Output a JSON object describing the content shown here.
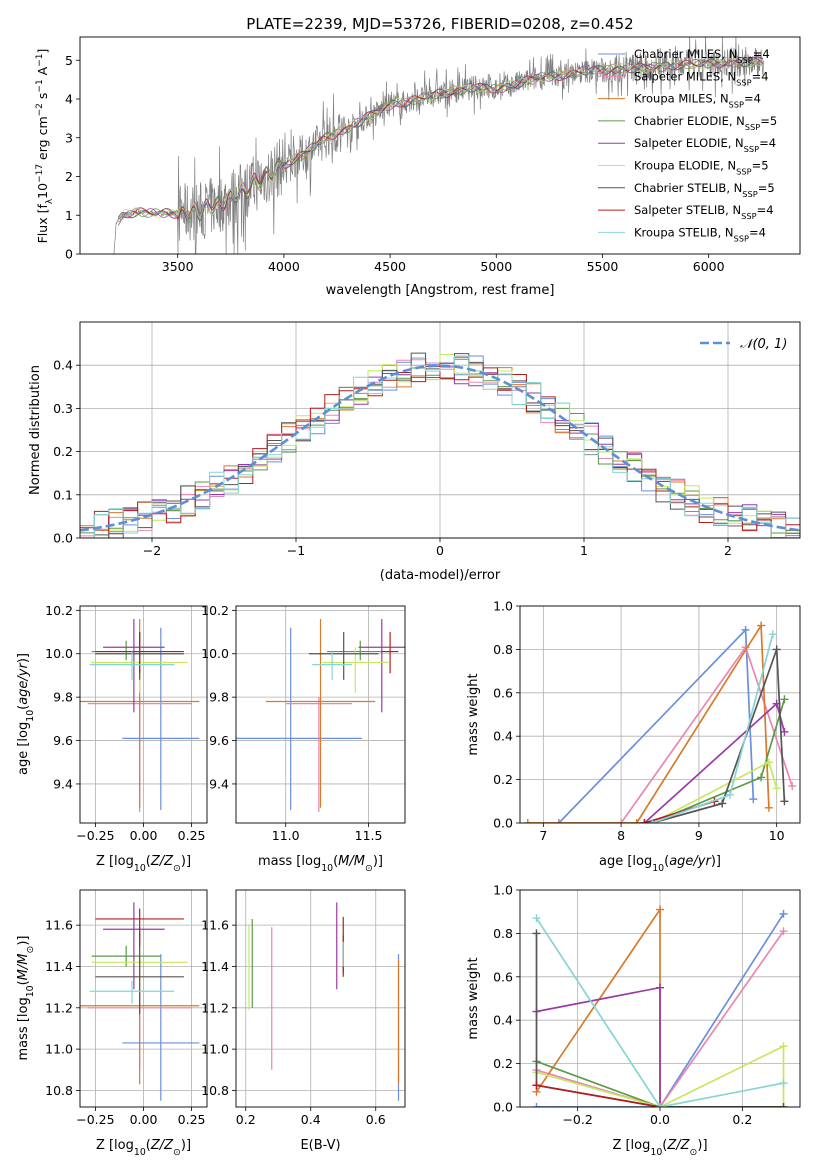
{
  "figure_title": "PLATE=2239, MJD=53726, FIBERID=0208, z=0.452",
  "colors": {
    "Chabrier MILES": "#6a8fdd",
    "Salpeter MILES": "#e887b3",
    "Kroupa MILES": "#d87a2a",
    "Chabrier ELODIE": "#5a9a48",
    "Salpeter ELODIE": "#9b3aa6",
    "Kroupa ELODIE": "#c6e85e",
    "Chabrier STELIB": "#555555",
    "Salpeter STELIB": "#b41e1e",
    "Kroupa STELIB": "#88d4d4"
  },
  "chart_data": [
    {
      "id": "spectrum",
      "type": "line",
      "title": "PLATE=2239, MJD=53726, FIBERID=0208, z=0.452",
      "xlabel": "wavelength [Angstrom, rest frame]",
      "ylabel": "Flux [f_λ 10^-17 erg cm^-2 s^-1 A^-1]",
      "xlim": [
        3040,
        6430
      ],
      "ylim": [
        0,
        5.6
      ],
      "xticks": [
        3500,
        4000,
        4500,
        5000,
        5500,
        6000
      ],
      "yticks": [
        0,
        1,
        2,
        3,
        4,
        5
      ],
      "legend_position": "top-right",
      "data_color": "#808080",
      "spectrum_knots": [
        [
          3200,
          0
        ],
        [
          3210,
          0.8
        ],
        [
          3240,
          1.0
        ],
        [
          3300,
          1.08
        ],
        [
          3400,
          1.05
        ],
        [
          3500,
          1.05
        ],
        [
          3600,
          1.1
        ],
        [
          3700,
          1.3
        ],
        [
          3800,
          1.6
        ],
        [
          3900,
          1.95
        ],
        [
          4000,
          2.3
        ],
        [
          4100,
          2.6
        ],
        [
          4200,
          3.0
        ],
        [
          4300,
          3.25
        ],
        [
          4400,
          3.55
        ],
        [
          4500,
          3.85
        ],
        [
          4600,
          3.95
        ],
        [
          4700,
          4.1
        ],
        [
          4800,
          4.2
        ],
        [
          4900,
          4.3
        ],
        [
          5000,
          4.25
        ],
        [
          5100,
          4.4
        ],
        [
          5200,
          4.55
        ],
        [
          5300,
          4.6
        ],
        [
          5400,
          4.7
        ],
        [
          5500,
          4.75
        ],
        [
          5600,
          4.8
        ],
        [
          5700,
          4.8
        ],
        [
          5800,
          4.85
        ],
        [
          5900,
          4.9
        ],
        [
          6000,
          4.9
        ],
        [
          6100,
          4.95
        ],
        [
          6200,
          4.95
        ],
        [
          6260,
          5.0
        ]
      ],
      "series": [
        {
          "name": "Chabrier MILES",
          "legend": "Chabrier MILES, N",
          "sub": "SSP",
          "n": "=4"
        },
        {
          "name": "Salpeter MILES",
          "legend": "Salpeter MILES, N",
          "sub": "SSP",
          "n": "=4"
        },
        {
          "name": "Kroupa MILES",
          "legend": "Kroupa MILES, N",
          "sub": "SSP",
          "n": "=4"
        },
        {
          "name": "Chabrier ELODIE",
          "legend": "Chabrier ELODIE, N",
          "sub": "SSP",
          "n": "=5"
        },
        {
          "name": "Salpeter ELODIE",
          "legend": "Salpeter ELODIE, N",
          "sub": "SSP",
          "n": "=4"
        },
        {
          "name": "Kroupa ELODIE",
          "legend": "Kroupa ELODIE, N",
          "sub": "SSP",
          "n": "=5"
        },
        {
          "name": "Chabrier STELIB",
          "legend": "Chabrier STELIB, N",
          "sub": "SSP",
          "n": "=5"
        },
        {
          "name": "Salpeter STELIB",
          "legend": "Salpeter STELIB, N",
          "sub": "SSP",
          "n": "=4"
        },
        {
          "name": "Kroupa STELIB",
          "legend": "Kroupa STELIB, N",
          "sub": "SSP",
          "n": "=4"
        }
      ]
    },
    {
      "id": "residuals",
      "type": "line",
      "xlabel": "(data-model)/error",
      "ylabel": "Normed distribution",
      "xlim": [
        -2.5,
        2.5
      ],
      "ylim": [
        0,
        0.5
      ],
      "xticks": [
        -2,
        -1,
        0,
        1,
        2
      ],
      "yticks": [
        0.0,
        0.1,
        0.2,
        0.3,
        0.4
      ],
      "legend_position": "top-right",
      "legend_label": "𝒩(0, 1)",
      "gaussian_color": "#5b8fd6",
      "bin_width": 0.1,
      "bin_start": -2.5
    },
    {
      "id": "z_vs_age",
      "type": "scatter",
      "xlabel": "Z [log10(Z/Z⊙)]",
      "ylabel": "age  [log10(age/yr)]",
      "xlim": [
        -0.33,
        0.33
      ],
      "ylim": [
        9.22,
        10.22
      ],
      "xticks": [
        -0.25,
        0.0,
        0.25
      ],
      "yticks": [
        9.4,
        9.6,
        9.8,
        10.0,
        10.2
      ],
      "points": [
        {
          "name": "Chabrier MILES",
          "x": 0.09,
          "xerr": 0.2,
          "y": 9.61,
          "yerr": [
            0.33,
            0.51
          ]
        },
        {
          "name": "Salpeter MILES",
          "x": -0.02,
          "xerr": 0.27,
          "y": 9.77,
          "yerr": [
            0.5,
            0.03
          ]
        },
        {
          "name": "Kroupa MILES",
          "x": -0.02,
          "xerr": 0.31,
          "y": 9.78,
          "yerr": [
            0.49,
            0.38
          ]
        },
        {
          "name": "Chabrier ELODIE",
          "x": -0.09,
          "xerr": 0.18,
          "y": 10.01,
          "yerr": [
            0.04,
            0.05
          ]
        },
        {
          "name": "Salpeter ELODIE",
          "x": -0.05,
          "xerr": 0.16,
          "y": 10.03,
          "yerr": [
            0.3,
            0.13
          ]
        },
        {
          "name": "Kroupa ELODIE",
          "x": -0.02,
          "xerr": 0.25,
          "y": 9.96,
          "yerr": [
            0.14,
            0.07
          ]
        },
        {
          "name": "Chabrier STELIB",
          "x": -0.02,
          "xerr": 0.23,
          "y": 10.0,
          "yerr": [
            0.12,
            0.1
          ]
        },
        {
          "name": "Salpeter STELIB",
          "x": -0.02,
          "xerr": 0.23,
          "y": 10.01,
          "yerr": [
            0.1,
            0.09
          ]
        },
        {
          "name": "Kroupa STELIB",
          "x": -0.06,
          "xerr": 0.22,
          "y": 9.95,
          "yerr": [
            0.07,
            0.06
          ]
        }
      ]
    },
    {
      "id": "mass_vs_age",
      "type": "scatter",
      "xlabel": "mass [log10(M/M⊙)]",
      "ylim": [
        9.22,
        10.22
      ],
      "xlim": [
        10.7,
        11.72
      ],
      "xticks": [
        11.0,
        11.5
      ],
      "yticks": [
        9.4,
        9.6,
        9.8,
        10.0,
        10.2
      ],
      "points": [
        {
          "name": "Chabrier MILES",
          "x": 11.03,
          "xerr": 0.43,
          "y": 9.61,
          "yerr": [
            0.33,
            0.51
          ]
        },
        {
          "name": "Salpeter MILES",
          "x": 11.2,
          "xerr": 0.2,
          "y": 9.77,
          "yerr": [
            0.5,
            0.03
          ]
        },
        {
          "name": "Kroupa MILES",
          "x": 11.21,
          "xerr": 0.33,
          "y": 9.78,
          "yerr": [
            0.49,
            0.38
          ]
        },
        {
          "name": "Chabrier ELODIE",
          "x": 11.45,
          "xerr": 0.2,
          "y": 10.01,
          "yerr": [
            0.04,
            0.05
          ]
        },
        {
          "name": "Salpeter ELODIE",
          "x": 11.58,
          "xerr": 0.14,
          "y": 10.03,
          "yerr": [
            0.3,
            0.13
          ]
        },
        {
          "name": "Kroupa ELODIE",
          "x": 11.42,
          "xerr": 0.2,
          "y": 9.96,
          "yerr": [
            0.14,
            0.07
          ]
        },
        {
          "name": "Chabrier STELIB",
          "x": 11.35,
          "xerr": 0.21,
          "y": 10.0,
          "yerr": [
            0.12,
            0.1
          ]
        },
        {
          "name": "Salpeter STELIB",
          "x": 11.63,
          "xerr": 0.05,
          "y": 10.01,
          "yerr": [
            0.1,
            0.09
          ]
        },
        {
          "name": "Kroupa STELIB",
          "x": 11.28,
          "xerr": 0.12,
          "y": 9.95,
          "yerr": [
            0.07,
            0.06
          ]
        }
      ]
    },
    {
      "id": "age_vs_weight",
      "type": "line",
      "xlabel": "age  [log10(age/yr)]",
      "ylabel": "mass weight",
      "xlim": [
        6.7,
        10.3
      ],
      "ylim": [
        0,
        1.0
      ],
      "xticks": [
        7,
        8,
        9,
        10
      ],
      "yticks": [
        0.0,
        0.2,
        0.4,
        0.6,
        0.8,
        1.0
      ],
      "series": [
        {
          "name": "Chabrier MILES",
          "points": [
            [
              7.2,
              0.0
            ],
            [
              9.6,
              0.89
            ],
            [
              9.7,
              0.11
            ]
          ]
        },
        {
          "name": "Salpeter MILES",
          "points": [
            [
              8.0,
              0.0
            ],
            [
              9.6,
              0.81
            ],
            [
              10.2,
              0.17
            ]
          ]
        },
        {
          "name": "Kroupa MILES",
          "points": [
            [
              6.8,
              0.0
            ],
            [
              8.2,
              0.0
            ],
            [
              9.8,
              0.91
            ],
            [
              9.9,
              0.07
            ]
          ]
        },
        {
          "name": "Chabrier ELODIE",
          "points": [
            [
              8.4,
              0.0
            ],
            [
              9.8,
              0.21
            ],
            [
              10.1,
              0.57
            ]
          ]
        },
        {
          "name": "Salpeter ELODIE",
          "points": [
            [
              8.3,
              0.0
            ],
            [
              10.0,
              0.55
            ],
            [
              10.1,
              0.42
            ]
          ]
        },
        {
          "name": "Kroupa ELODIE",
          "points": [
            [
              8.4,
              0.0
            ],
            [
              9.9,
              0.28
            ],
            [
              10.0,
              0.16
            ]
          ]
        },
        {
          "name": "Chabrier STELIB",
          "points": [
            [
              8.4,
              0.0
            ],
            [
              9.3,
              0.09
            ],
            [
              10.0,
              0.8
            ],
            [
              10.1,
              0.1
            ]
          ]
        },
        {
          "name": "Salpeter STELIB",
          "points": [
            [
              8.3,
              0.0
            ],
            [
              9.2,
              0.1
            ]
          ]
        },
        {
          "name": "Kroupa STELIB",
          "points": [
            [
              8.4,
              0.0
            ],
            [
              9.4,
              0.13
            ],
            [
              9.95,
              0.87
            ]
          ]
        }
      ]
    },
    {
      "id": "z_vs_mass",
      "type": "scatter",
      "xlabel": "Z [log10(Z/Z⊙)]",
      "ylabel": "mass [log10(M/M⊙)]",
      "xlim": [
        -0.33,
        0.33
      ],
      "ylim": [
        10.72,
        11.77
      ],
      "xticks": [
        -0.25,
        0.0,
        0.25
      ],
      "yticks": [
        10.8,
        11.0,
        11.2,
        11.4,
        11.6
      ],
      "points": [
        {
          "name": "Chabrier MILES",
          "x": 0.09,
          "xerr": 0.2,
          "y": 11.03,
          "yerr": [
            0.28,
            0.43
          ]
        },
        {
          "name": "Salpeter MILES",
          "x": -0.02,
          "xerr": 0.27,
          "y": 11.2,
          "yerr": [
            0.3,
            0.39
          ]
        },
        {
          "name": "Kroupa MILES",
          "x": -0.02,
          "xerr": 0.31,
          "y": 11.21,
          "yerr": [
            0.38,
            0.22
          ]
        },
        {
          "name": "Chabrier ELODIE",
          "x": -0.09,
          "xerr": 0.18,
          "y": 11.45,
          "yerr": [
            0.05,
            0.05
          ]
        },
        {
          "name": "Salpeter ELODIE",
          "x": -0.05,
          "xerr": 0.16,
          "y": 11.58,
          "yerr": [
            0.29,
            0.13
          ]
        },
        {
          "name": "Kroupa ELODIE",
          "x": -0.02,
          "xerr": 0.25,
          "y": 11.42,
          "yerr": [
            0.13,
            0.08
          ]
        },
        {
          "name": "Chabrier STELIB",
          "x": -0.02,
          "xerr": 0.23,
          "y": 11.35,
          "yerr": [
            0.18,
            0.22
          ]
        },
        {
          "name": "Salpeter STELIB",
          "x": -0.02,
          "xerr": 0.23,
          "y": 11.63,
          "yerr": [
            0.13,
            0.05
          ]
        },
        {
          "name": "Kroupa STELIB",
          "x": -0.06,
          "xerr": 0.22,
          "y": 11.28,
          "yerr": [
            0.06,
            0.05
          ]
        }
      ]
    },
    {
      "id": "ebv_vs_mass",
      "type": "scatter",
      "xlabel": "E(B-V)",
      "xlim": [
        0.17,
        0.69
      ],
      "ylim": [
        10.72,
        11.77
      ],
      "xticks": [
        0.2,
        0.4,
        0.6
      ],
      "yticks": [
        10.8,
        11.0,
        11.2,
        11.4,
        11.6
      ],
      "points": [
        {
          "name": "Chabrier MILES",
          "x": 0.67,
          "y": 11.03,
          "yerr": [
            0.28,
            0.43
          ]
        },
        {
          "name": "Salpeter MILES",
          "x": 0.28,
          "y": 11.2,
          "yerr": [
            0.3,
            0.39
          ]
        },
        {
          "name": "Kroupa MILES",
          "x": 0.67,
          "y": 11.21,
          "yerr": [
            0.38,
            0.22
          ]
        },
        {
          "name": "Chabrier ELODIE",
          "x": 0.22,
          "y": 11.45,
          "yerr": [
            0.25,
            0.18
          ]
        },
        {
          "name": "Salpeter ELODIE",
          "x": 0.48,
          "y": 11.58,
          "yerr": [
            0.29,
            0.13
          ]
        },
        {
          "name": "Kroupa ELODIE",
          "x": 0.21,
          "y": 11.42,
          "yerr": [
            0.23,
            0.18
          ]
        },
        {
          "name": "Chabrier STELIB",
          "x": 0.5,
          "y": 11.45,
          "yerr": [
            0.08,
            0.1
          ]
        },
        {
          "name": "Salpeter STELIB",
          "x": 0.5,
          "y": 11.5,
          "yerr": [
            0.15,
            0.14
          ]
        },
        {
          "name": "Kroupa STELIB",
          "x": 0.5,
          "y": 11.46,
          "yerr": [
            0.06,
            0.06
          ]
        }
      ]
    },
    {
      "id": "z_vs_weight",
      "type": "line",
      "xlabel": "Z [log10(Z/Z⊙)]",
      "ylabel": "mass weight",
      "xlim": [
        -0.34,
        0.34
      ],
      "ylim": [
        0,
        1.0
      ],
      "xticks": [
        -0.2,
        0.0,
        0.2
      ],
      "yticks": [
        0.0,
        0.2,
        0.4,
        0.6,
        0.8,
        1.0
      ],
      "series": [
        {
          "name": "Chabrier MILES",
          "points": [
            [
              -0.3,
              0.0
            ],
            [
              0.0,
              0.0
            ],
            [
              0.3,
              0.89
            ]
          ]
        },
        {
          "name": "Salpeter MILES",
          "points": [
            [
              -0.3,
              0.17
            ],
            [
              0.0,
              0.0
            ],
            [
              0.3,
              0.81
            ]
          ]
        },
        {
          "name": "Kroupa MILES",
          "points": [
            [
              -0.3,
              0.07
            ],
            [
              0.0,
              0.91
            ],
            [
              0.0,
              0.0
            ]
          ]
        },
        {
          "name": "Chabrier ELODIE",
          "points": [
            [
              -0.3,
              0.21
            ],
            [
              0.0,
              0.0
            ],
            [
              0.3,
              0.0
            ]
          ]
        },
        {
          "name": "Salpeter ELODIE",
          "points": [
            [
              -0.3,
              0.44
            ],
            [
              0.0,
              0.55
            ],
            [
              0.0,
              0.0
            ]
          ]
        },
        {
          "name": "Kroupa ELODIE",
          "points": [
            [
              -0.3,
              0.16
            ],
            [
              0.0,
              0.0
            ],
            [
              0.3,
              0.28
            ],
            [
              0.3,
              0.0
            ]
          ]
        },
        {
          "name": "Chabrier STELIB",
          "points": [
            [
              -0.3,
              0.8
            ],
            [
              -0.3,
              0.1
            ],
            [
              0.0,
              0.0
            ],
            [
              0.3,
              0.0
            ]
          ]
        },
        {
          "name": "Salpeter STELIB",
          "points": [
            [
              -0.3,
              0.1
            ],
            [
              0.0,
              0.0
            ]
          ]
        },
        {
          "name": "Kroupa STELIB",
          "points": [
            [
              -0.3,
              0.87
            ],
            [
              0.0,
              0.0
            ],
            [
              0.3,
              0.11
            ]
          ]
        }
      ]
    }
  ]
}
